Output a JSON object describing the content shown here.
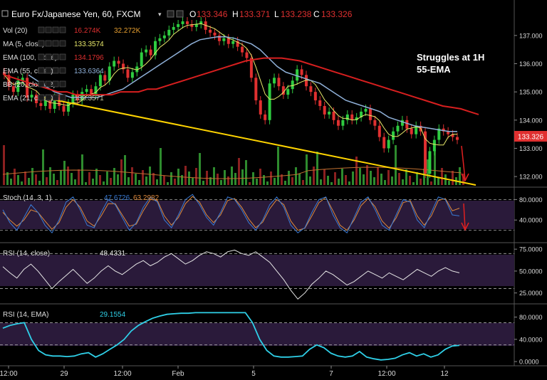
{
  "colors": {
    "background": "#000000",
    "price_up": "#2ecc40",
    "price_down": "#e03030",
    "ema100": "#d71f1f",
    "ema55": "#8fb0d8",
    "ma5": "#e8e86a",
    "trendline": "#ffd400",
    "volume_up": "#2e8b2e",
    "volume_down": "#8b2020",
    "stoch_k": "#3a7bd5",
    "stoch_d": "#e08a3c",
    "rsi_close": "#e6e6e6",
    "rsi_ema": "#2fd0e8",
    "osc_band": "#2a1a3a",
    "annotation_arrow": "#e02020"
  },
  "header": {
    "symbol": "Euro Fx/Japanese Yen, 60, FXCM",
    "ohlc": [
      {
        "label": "O",
        "value": "133.346"
      },
      {
        "label": "H",
        "value": "133.371"
      },
      {
        "label": "L",
        "value": "133.238"
      },
      {
        "label": "C",
        "value": "133.326"
      }
    ]
  },
  "legend": [
    {
      "name": "Vol (20)",
      "values": [
        "16.274K",
        "32.272K"
      ],
      "value_colors": [
        "#e03030",
        "#e8a030"
      ]
    },
    {
      "name": "MA (5, close)",
      "values": [
        "133.3574"
      ],
      "value_colors": [
        "#e8e86a"
      ]
    },
    {
      "name": "EMA (100, close)",
      "values": [
        "134.1796"
      ],
      "value_colors": [
        "#e03030"
      ]
    },
    {
      "name": "EMA (55, close)",
      "values": [
        "133.6364"
      ],
      "value_colors": [
        "#8fb0d8"
      ]
    },
    {
      "name": "BB (20, close, 2)",
      "values": [],
      "value_colors": []
    },
    {
      "name": "EMA (21, close)",
      "values": [
        "133.3571"
      ],
      "value_colors": [
        "#c8c8a0"
      ]
    }
  ],
  "annotation": {
    "line1": "Struggles at 1H",
    "line2": "55-EMA"
  },
  "price_label": "133.326",
  "x_ticks": [
    "12:00",
    "29",
    "12:00",
    "Feb",
    "5",
    "7",
    "12:00",
    "12"
  ],
  "chart_data": [
    {
      "type": "line",
      "title": "Euro Fx/Japanese Yen, 60, FXCM",
      "ylim": [
        131.7,
        137.5
      ],
      "y_ticks": [
        "137.000",
        "136.000",
        "135.000",
        "134.000",
        "133.000",
        "132.000"
      ],
      "series": [
        {
          "name": "Close",
          "values": [
            135.6,
            135.2,
            135.0,
            135.4,
            135.5,
            134.8,
            134.9,
            134.6,
            134.5,
            134.7,
            134.4,
            134.8,
            134.5,
            134.3,
            134.6,
            134.9,
            134.7,
            135.0,
            135.1,
            134.9,
            135.2,
            135.6,
            135.4,
            135.9,
            136.1,
            136.0,
            135.8,
            135.5,
            135.7,
            135.9,
            136.4,
            136.5,
            136.3,
            136.8,
            136.9,
            137.0,
            137.2,
            137.3,
            137.4,
            137.5,
            137.4,
            137.3,
            137.4,
            137.5,
            137.2,
            137.1,
            137.0,
            136.8,
            136.9,
            136.7,
            136.8,
            136.6,
            136.4,
            136.2,
            135.5,
            134.7,
            134.2,
            134.0,
            135.3,
            135.5,
            135.2,
            134.9,
            135.1,
            135.4,
            135.8,
            135.6,
            135.2,
            135.0,
            134.7,
            134.5,
            134.2,
            134.3,
            134.0,
            133.8,
            134.0,
            134.2,
            134.0,
            134.1,
            134.3,
            134.4,
            134.0,
            133.8,
            133.4,
            133.0,
            133.3,
            133.6,
            133.8,
            134.0,
            133.7,
            133.5,
            133.8,
            133.6,
            132.1,
            132.9,
            133.3,
            133.7,
            133.6,
            133.5,
            133.4,
            133.3
          ]
        },
        {
          "name": "EMA (100, close)",
          "values": [
            135.6,
            135.5,
            135.4,
            135.3,
            135.2,
            135.1,
            135.0,
            135.0,
            134.9,
            134.9,
            134.9,
            134.9,
            134.9,
            135.0,
            135.0,
            135.0,
            135.1,
            135.1,
            135.2,
            135.3,
            135.4,
            135.5,
            135.6,
            135.7,
            135.8,
            135.9,
            136.0,
            136.1,
            136.15,
            136.2,
            136.2,
            136.2,
            136.15,
            136.1,
            136.0,
            135.9,
            135.8,
            135.7,
            135.6,
            135.5,
            135.4,
            135.3,
            135.2,
            135.1,
            135.0,
            134.9,
            134.8,
            134.7,
            134.6,
            134.5,
            134.45,
            134.4,
            134.3,
            134.2
          ]
        },
        {
          "name": "EMA (55, close)",
          "values": [
            135.6,
            135.4,
            135.2,
            135.0,
            134.9,
            134.8,
            134.8,
            134.8,
            134.8,
            134.9,
            135.0,
            135.1,
            135.3,
            135.5,
            135.7,
            135.9,
            136.1,
            136.3,
            136.5,
            136.7,
            136.85,
            136.9,
            136.95,
            136.95,
            136.9,
            136.8,
            136.7,
            136.5,
            136.2,
            135.9,
            135.7,
            135.6,
            135.5,
            135.4,
            135.3,
            135.1,
            134.9,
            134.7,
            134.6,
            134.5,
            134.4,
            134.3,
            134.1,
            134.0,
            133.9,
            133.8,
            133.75,
            133.7,
            133.65,
            133.6,
            133.6
          ]
        }
      ],
      "annotations": [
        "Struggles at 1H 55-EMA",
        "133.326"
      ]
    },
    {
      "type": "bar",
      "title": "Vol (20)",
      "series": [
        {
          "name": "Vol (20)",
          "values": [
            16.274,
            32.272
          ]
        }
      ]
    },
    {
      "type": "line",
      "title": "Stoch (14, 3, 1)",
      "ylim": [
        0,
        100
      ],
      "y_ticks": [
        "80.0000",
        "40.0000"
      ],
      "levels": [
        80,
        20
      ],
      "series": [
        {
          "name": "%K",
          "last": 47.6726,
          "values": [
            60,
            35,
            20,
            45,
            70,
            55,
            30,
            15,
            40,
            75,
            85,
            60,
            30,
            25,
            55,
            80,
            70,
            45,
            20,
            35,
            65,
            85,
            75,
            40,
            25,
            50,
            80,
            90,
            70,
            45,
            30,
            55,
            85,
            80,
            60,
            35,
            20,
            40,
            70,
            85,
            65,
            30,
            15,
            25,
            55,
            80,
            85,
            50,
            25,
            15,
            45,
            75,
            85,
            60,
            30,
            20,
            50,
            80,
            75,
            40,
            25,
            55,
            85,
            80,
            50,
            48
          ]
        },
        {
          "name": "%D",
          "last": 63.2982,
          "values": [
            55,
            40,
            28,
            40,
            60,
            55,
            38,
            22,
            35,
            65,
            80,
            65,
            38,
            28,
            48,
            72,
            72,
            50,
            28,
            32,
            58,
            80,
            78,
            48,
            30,
            45,
            72,
            86,
            75,
            50,
            35,
            50,
            78,
            82,
            65,
            42,
            25,
            36,
            62,
            80,
            70,
            38,
            20,
            24,
            48,
            74,
            84,
            58,
            30,
            20,
            40,
            68,
            82,
            66,
            38,
            24,
            44,
            74,
            78,
            48,
            30,
            48,
            78,
            82,
            58,
            63
          ]
        }
      ]
    },
    {
      "type": "line",
      "title": "RSI (14, close)",
      "ylim": [
        15,
        80
      ],
      "y_ticks": [
        "75.0000",
        "50.0000",
        "25.0000"
      ],
      "levels": [
        70,
        30
      ],
      "series": [
        {
          "name": "RSI (14, close)",
          "last": 48.4331,
          "values": [
            55,
            48,
            42,
            52,
            58,
            50,
            40,
            30,
            38,
            45,
            52,
            44,
            36,
            42,
            50,
            56,
            50,
            46,
            52,
            58,
            62,
            56,
            60,
            66,
            70,
            64,
            58,
            62,
            68,
            72,
            70,
            66,
            72,
            74,
            70,
            68,
            72,
            66,
            60,
            50,
            40,
            28,
            18,
            25,
            35,
            42,
            50,
            46,
            40,
            34,
            38,
            44,
            50,
            46,
            42,
            48,
            44,
            40,
            46,
            52,
            48,
            44,
            50,
            54,
            50,
            48
          ]
        }
      ]
    },
    {
      "type": "line",
      "title": "RSI (14, EMA)",
      "ylim": [
        -5,
        100
      ],
      "y_ticks": [
        "80.0000",
        "40.0000",
        "0.0000"
      ],
      "levels": [
        70,
        30
      ],
      "series": [
        {
          "name": "RSI (14, EMA)",
          "last": 29.1554,
          "values": [
            60,
            65,
            68,
            70,
            40,
            20,
            12,
            10,
            10,
            9,
            10,
            14,
            16,
            8,
            14,
            22,
            30,
            40,
            55,
            65,
            72,
            78,
            82,
            85,
            86,
            87,
            87,
            88,
            88,
            88,
            88,
            88,
            88,
            88,
            88,
            70,
            40,
            20,
            10,
            8,
            8,
            9,
            10,
            22,
            30,
            25,
            15,
            10,
            8,
            10,
            18,
            8,
            5,
            3,
            4,
            6,
            12,
            16,
            10,
            14,
            8,
            12,
            22,
            28,
            29
          ]
        }
      ]
    }
  ]
}
